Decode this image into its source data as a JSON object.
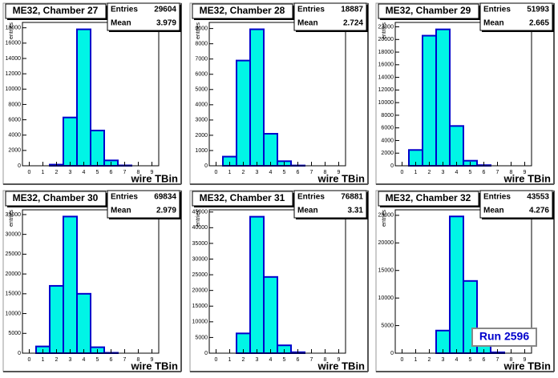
{
  "chart_data": [
    {
      "type": "histogram",
      "title": "ME32, Chamber 27",
      "xlabel": "wire TBin",
      "ylabel": "entries",
      "stats": [
        {
          "label": "Entries",
          "value": 29604
        },
        {
          "label": "Mean",
          "value": 3.979
        }
      ],
      "bins": [
        -0.5,
        0.5,
        1.5,
        2.5,
        3.5,
        4.5,
        5.5,
        6.5,
        7.5,
        8.5,
        9.5
      ],
      "counts": [
        0,
        0,
        150,
        6300,
        17800,
        4600,
        700,
        50,
        0,
        0
      ],
      "xlim": [
        -0.5,
        9.5
      ],
      "xticks": [
        0,
        1,
        2,
        3,
        4,
        5,
        6,
        7,
        8,
        9
      ],
      "ylim": [
        0,
        18700
      ],
      "yticks": [
        0,
        2000,
        4000,
        6000,
        8000,
        10000,
        12000,
        14000,
        16000,
        18000
      ],
      "color": "#00f5e6",
      "edgecolor": "#0000cc"
    },
    {
      "type": "histogram",
      "title": "ME32, Chamber 28",
      "xlabel": "wire TBin",
      "ylabel": "entries",
      "stats": [
        {
          "label": "Entries",
          "value": 18887
        },
        {
          "label": "Mean",
          "value": 2.724
        }
      ],
      "bins": [
        -0.5,
        0.5,
        1.5,
        2.5,
        3.5,
        4.5,
        5.5,
        6.5,
        7.5,
        8.5,
        9.5
      ],
      "counts": [
        0,
        600,
        6900,
        8950,
        2100,
        300,
        20,
        0,
        0,
        0
      ],
      "xlim": [
        -0.5,
        9.5
      ],
      "xticks": [
        0,
        1,
        2,
        3,
        4,
        5,
        6,
        7,
        8,
        9
      ],
      "ylim": [
        0,
        9400
      ],
      "yticks": [
        0,
        1000,
        2000,
        3000,
        4000,
        5000,
        6000,
        7000,
        8000,
        9000
      ],
      "color": "#00f5e6",
      "edgecolor": "#0000cc"
    },
    {
      "type": "histogram",
      "title": "ME32, Chamber 29",
      "xlabel": "wire TBin",
      "ylabel": "entries",
      "stats": [
        {
          "label": "Entries",
          "value": 51993
        },
        {
          "label": "Mean",
          "value": 2.665
        }
      ],
      "bins": [
        -0.5,
        0.5,
        1.5,
        2.5,
        3.5,
        4.5,
        5.5,
        6.5,
        7.5,
        8.5,
        9.5
      ],
      "counts": [
        0,
        2500,
        20600,
        21600,
        6300,
        800,
        100,
        0,
        0,
        0
      ],
      "xlim": [
        -0.5,
        9.5
      ],
      "xticks": [
        0,
        1,
        2,
        3,
        4,
        5,
        6,
        7,
        8,
        9
      ],
      "ylim": [
        0,
        22700
      ],
      "yticks": [
        0,
        2000,
        4000,
        6000,
        8000,
        10000,
        12000,
        14000,
        16000,
        18000,
        20000,
        22000
      ],
      "color": "#00f5e6",
      "edgecolor": "#0000cc"
    },
    {
      "type": "histogram",
      "title": "ME32, Chamber 30",
      "xlabel": "wire TBin",
      "ylabel": "entries",
      "stats": [
        {
          "label": "Entries",
          "value": 69834
        },
        {
          "label": "Mean",
          "value": 2.979
        }
      ],
      "bins": [
        -0.5,
        0.5,
        1.5,
        2.5,
        3.5,
        4.5,
        5.5,
        6.5,
        7.5,
        8.5,
        9.5
      ],
      "counts": [
        0,
        1700,
        17000,
        34500,
        15000,
        1500,
        100,
        0,
        0,
        0
      ],
      "xlim": [
        -0.5,
        9.5
      ],
      "xticks": [
        0,
        1,
        2,
        3,
        4,
        5,
        6,
        7,
        8,
        9
      ],
      "ylim": [
        0,
        36200
      ],
      "yticks": [
        0,
        5000,
        10000,
        15000,
        20000,
        25000,
        30000,
        35000
      ],
      "color": "#00f5e6",
      "edgecolor": "#0000cc"
    },
    {
      "type": "histogram",
      "title": "ME32, Chamber 31",
      "xlabel": "wire TBin",
      "ylabel": "entries",
      "stats": [
        {
          "label": "Entries",
          "value": 76881
        },
        {
          "label": "Mean",
          "value": 3.31
        }
      ],
      "bins": [
        -0.5,
        0.5,
        1.5,
        2.5,
        3.5,
        4.5,
        5.5,
        6.5,
        7.5,
        8.5,
        9.5
      ],
      "counts": [
        0,
        0,
        6300,
        43500,
        24300,
        2500,
        300,
        0,
        0,
        0
      ],
      "xlim": [
        -0.5,
        9.5
      ],
      "xticks": [
        0,
        1,
        2,
        3,
        4,
        5,
        6,
        7,
        8,
        9
      ],
      "ylim": [
        0,
        45700
      ],
      "yticks": [
        0,
        5000,
        10000,
        15000,
        20000,
        25000,
        30000,
        35000,
        40000,
        45000
      ],
      "color": "#00f5e6",
      "edgecolor": "#0000cc"
    },
    {
      "type": "histogram",
      "title": "ME32, Chamber 32",
      "xlabel": "wire TBin",
      "ylabel": "entries",
      "stats": [
        {
          "label": "Entries",
          "value": 43553
        },
        {
          "label": "Mean",
          "value": 4.276
        }
      ],
      "bins": [
        -0.5,
        0.5,
        1.5,
        2.5,
        3.5,
        4.5,
        5.5,
        6.5,
        7.5,
        8.5,
        9.5
      ],
      "counts": [
        0,
        0,
        0,
        4100,
        24800,
        13100,
        1400,
        150,
        0,
        0
      ],
      "xlim": [
        -0.5,
        9.5
      ],
      "xticks": [
        0,
        1,
        2,
        3,
        4,
        5,
        6,
        7,
        8,
        9
      ],
      "ylim": [
        0,
        26000
      ],
      "yticks": [
        0,
        5000,
        10000,
        15000,
        20000,
        25000
      ],
      "color": "#00f5e6",
      "edgecolor": "#0000cc",
      "annotation": "Run 2596"
    }
  ]
}
